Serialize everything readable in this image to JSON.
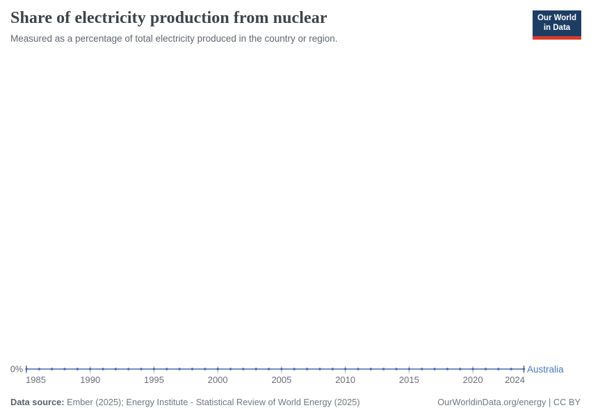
{
  "header": {
    "title": "Share of electricity production from nuclear",
    "subtitle": "Measured as a percentage of total electricity produced in the country or region.",
    "logo": {
      "line1": "Our World",
      "line2": "in Data"
    }
  },
  "colors": {
    "series_blue": "#4668ad",
    "entity_label_blue": "#4a78bd",
    "logo_navy": "#1d3d63",
    "logo_red": "#d73b2a",
    "tick_gray": "#a5b2bd",
    "axis_text_gray": "#676d74"
  },
  "chart_data": {
    "type": "line",
    "title": "Share of electricity production from nuclear",
    "xlabel": "",
    "ylabel": "",
    "unit": "%",
    "grid": false,
    "legend_position": "end-of-line",
    "x": [
      1985,
      1986,
      1987,
      1988,
      1989,
      1990,
      1991,
      1992,
      1993,
      1994,
      1995,
      1996,
      1997,
      1998,
      1999,
      2000,
      2001,
      2002,
      2003,
      2004,
      2005,
      2006,
      2007,
      2008,
      2009,
      2010,
      2011,
      2012,
      2013,
      2014,
      2015,
      2016,
      2017,
      2018,
      2019,
      2020,
      2021,
      2022,
      2023,
      2024
    ],
    "series": [
      {
        "name": "Australia",
        "color": "#4668ad",
        "values": [
          0,
          0,
          0,
          0,
          0,
          0,
          0,
          0,
          0,
          0,
          0,
          0,
          0,
          0,
          0,
          0,
          0,
          0,
          0,
          0,
          0,
          0,
          0,
          0,
          0,
          0,
          0,
          0,
          0,
          0,
          0,
          0,
          0,
          0,
          0,
          0,
          0,
          0,
          0,
          0
        ]
      }
    ],
    "x_ticks": [
      1985,
      1990,
      1995,
      2000,
      2005,
      2010,
      2015,
      2020,
      2024
    ],
    "y_ticks": [
      {
        "value": 0,
        "label": "0%"
      }
    ],
    "xlim": [
      1985,
      2024
    ],
    "ylim": [
      0,
      0
    ]
  },
  "footer": {
    "source_label": "Data source:",
    "source_text": " Ember (2025); Energy Institute - Statistical Review of World Energy (2025)",
    "attribution": "OurWorldinData.org/energy | CC BY"
  }
}
